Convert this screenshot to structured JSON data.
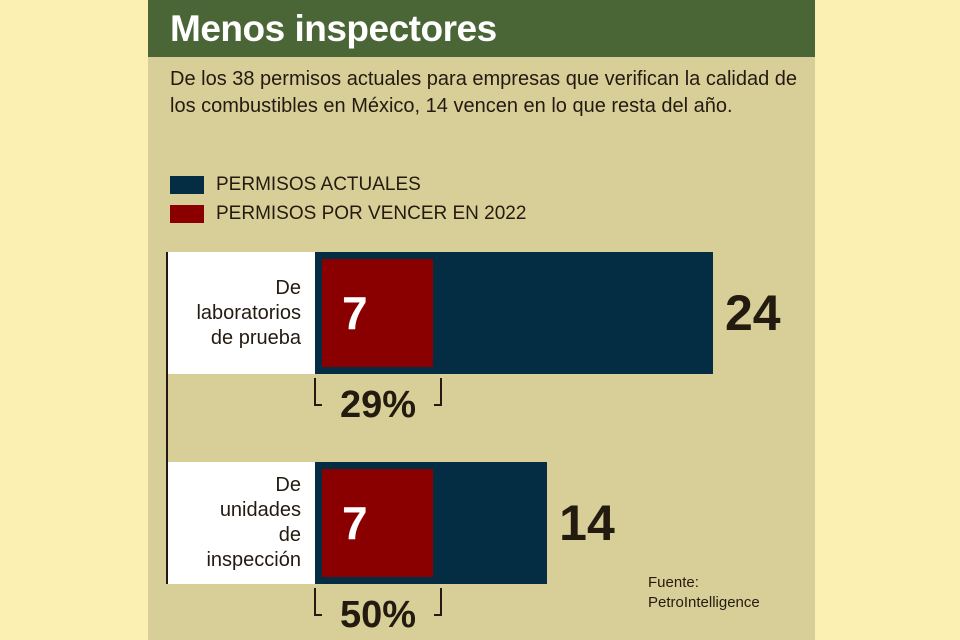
{
  "title": "Menos inspectores",
  "subtitle": "De los 38 permisos actuales para empresas que verifican la calidad de los combustibles en México, 14 vencen en lo que resta del año.",
  "source": [
    "Fuente:",
    "PetroIntelligence"
  ],
  "colors": {
    "current": "#042c42",
    "expiring": "#8a0000",
    "header": "#4a6536",
    "panel": "#d8cf98"
  },
  "chart_data": {
    "type": "bar",
    "orientation": "horizontal",
    "title": "Menos inspectores",
    "legend": [
      "PERMISOS ACTUALES",
      "PERMISOS POR VENCER EN 2022"
    ],
    "legend_position": "top-left",
    "categories": [
      [
        "De",
        "laboratorios",
        "de prueba"
      ],
      [
        "De",
        "unidades",
        "de",
        "inspección"
      ]
    ],
    "series": [
      {
        "name": "PERMISOS ACTUALES",
        "values": [
          24,
          14
        ]
      },
      {
        "name": "PERMISOS POR VENCER EN 2022",
        "values": [
          7,
          7
        ]
      }
    ],
    "percent_labels": [
      "29%",
      "50%"
    ],
    "xlim": [
      0,
      24
    ]
  }
}
